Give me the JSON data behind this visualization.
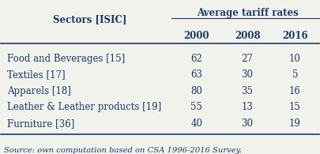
{
  "title": "Average tariff rates",
  "col_header": "Sectors [ISIC]",
  "years": [
    "2000",
    "2008",
    "2016"
  ],
  "rows": [
    {
      "sector": "Food and Beverages [15]",
      "values": [
        62,
        27,
        10
      ]
    },
    {
      "sector": "Textiles [17]",
      "values": [
        63,
        30,
        5
      ]
    },
    {
      "sector": "Apparels [18]",
      "values": [
        80,
        35,
        16
      ]
    },
    {
      "sector": "Leather & Leather products [19]",
      "values": [
        55,
        13,
        15
      ]
    },
    {
      "sector": "Furniture [36]",
      "values": [
        40,
        30,
        19
      ]
    }
  ],
  "source": "Source: own computation based on CSA 1996-2016 Survey.",
  "bg_color": "#f2f2ed",
  "header_color": "#1a3a6b",
  "value_color": "#1a3a6b",
  "sector_color": "#1a3a6b",
  "source_color": "#1a3a6b",
  "line_color": "#1a3a6b",
  "figsize": [
    4.05,
    1.95
  ],
  "dpi": 100
}
